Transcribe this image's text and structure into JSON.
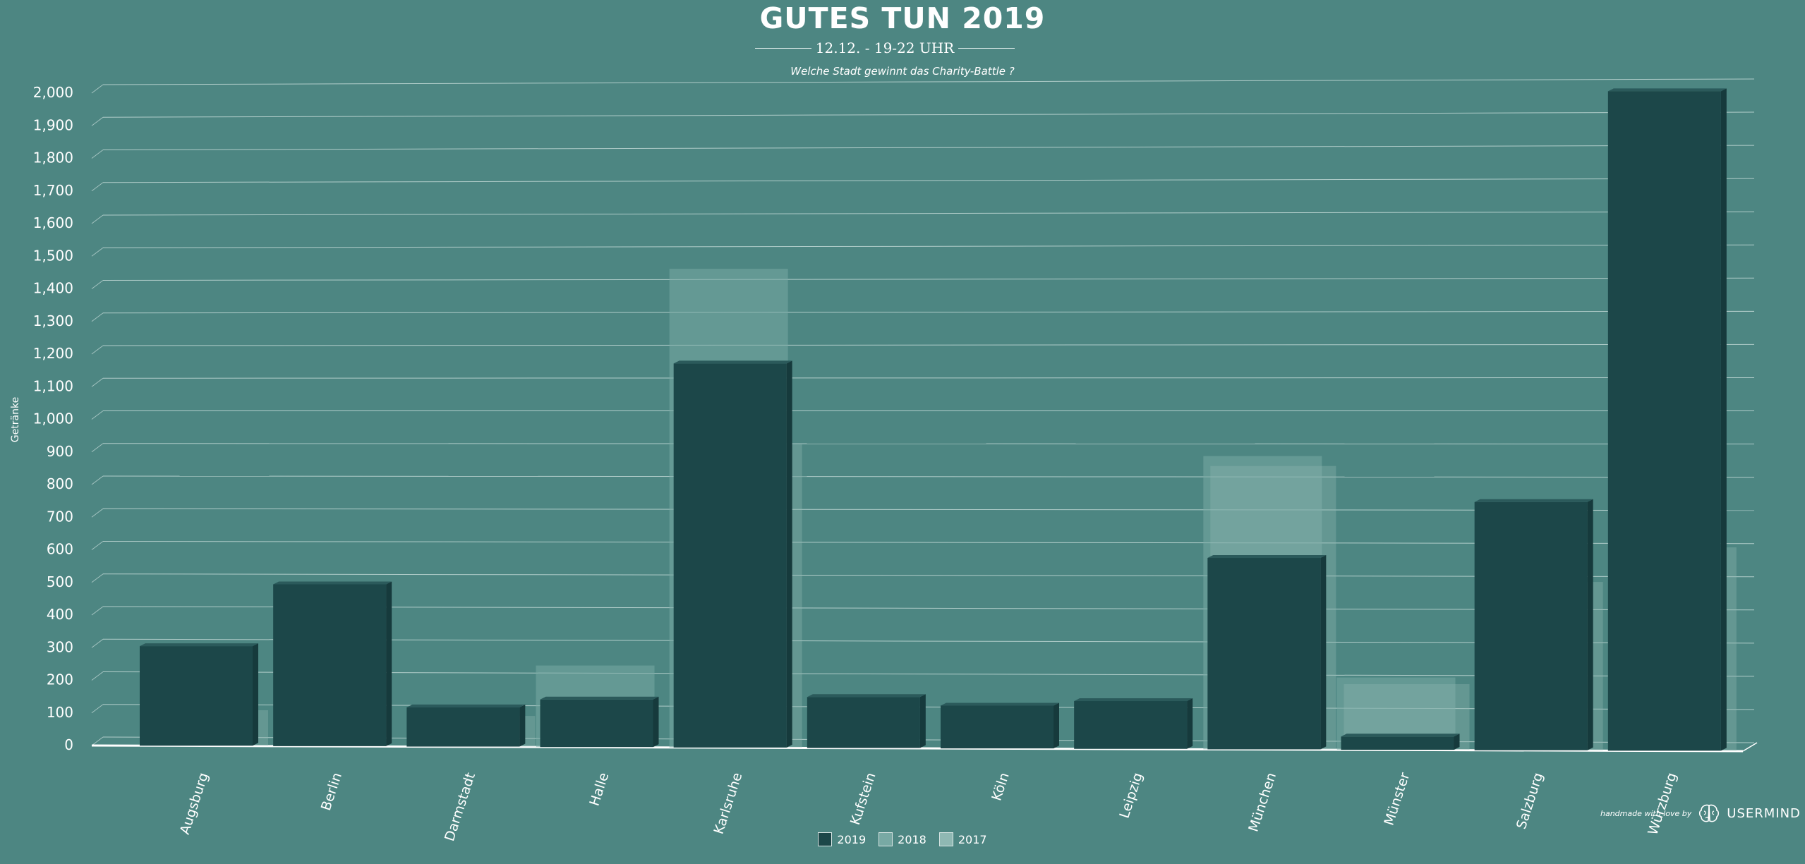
{
  "header": {
    "title": "GUTES TUN 2019",
    "subtitle": "12.12. - 19-22 UHR",
    "question": "Welche Stadt gewinnt das Charity-Battle ?"
  },
  "credit": {
    "text": "handmade with love by",
    "brand": "USERMIND",
    "brand_icon": "brain-icon"
  },
  "colors": {
    "background": "#4d8682",
    "series_2019": "#1c4749",
    "series_2018": "#78a9a4",
    "series_2017": "#8fb8b3",
    "grid": "#c9dedb"
  },
  "chart_data": {
    "type": "bar",
    "ylabel": "Getränke",
    "xlabel": "",
    "ylim": [
      0,
      2000
    ],
    "yticks": [
      0,
      100,
      200,
      300,
      400,
      500,
      600,
      700,
      800,
      900,
      1000,
      1100,
      1200,
      1300,
      1400,
      1500,
      1600,
      1700,
      1800,
      1900,
      2000
    ],
    "ytick_labels": [
      "0",
      "100",
      "200",
      "300",
      "400",
      "500",
      "600",
      "700",
      "800",
      "900",
      "1,000",
      "1,100",
      "1,200",
      "1,300",
      "1,400",
      "1,500",
      "1,600",
      "1,700",
      "1,800",
      "1,900",
      "2,000"
    ],
    "grid": true,
    "legend_position": "bottom-center",
    "categories": [
      "Augsburg",
      "Berlin",
      "Darmstadt",
      "Halle",
      "Karlsruhe",
      "Kufstein",
      "Köln",
      "Leipzig",
      "München",
      "Münster",
      "Salzburg",
      "Würzburg"
    ],
    "series": [
      {
        "name": "2019",
        "values": [
          305,
          495,
          120,
          145,
          1170,
          155,
          130,
          145,
          580,
          40,
          750,
          1990
        ]
      },
      {
        "name": "2018",
        "values": [
          0,
          0,
          0,
          240,
          1450,
          0,
          0,
          0,
          880,
          210,
          0,
          0
        ]
      },
      {
        "name": "2017",
        "values": [
          100,
          0,
          85,
          0,
          915,
          0,
          0,
          0,
          850,
          190,
          500,
          605
        ]
      }
    ]
  }
}
